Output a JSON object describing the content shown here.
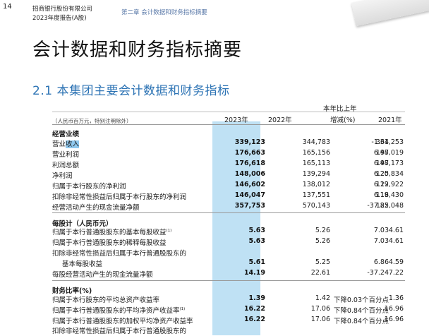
{
  "header": {
    "page_number": "14",
    "company": "招商银行股份有限公司",
    "report": "2023年度报告(A股)",
    "chapter": "第二章 会计数据和财务指标摘要"
  },
  "title": "会计数据和财务指标摘要",
  "section_title": "2.1 本集团主要会计数据和财务指标",
  "table": {
    "unit_note": "（人民币百万元，特别注明除外）",
    "col_headers": [
      "2023年",
      "2022年",
      "本年比上年",
      "增减(%)",
      "2021年"
    ],
    "rows": [
      {
        "label": "经营业绩",
        "group": true
      },
      {
        "label": "营业",
        "label_selected": "收入",
        "values": [
          "339,123",
          "344,783",
          "-1.64",
          "331,253"
        ]
      },
      {
        "label": "营业利润",
        "values": [
          "176,663",
          "165,156",
          "6.97",
          "148,019"
        ]
      },
      {
        "label": "利润总额",
        "values": [
          "176,618",
          "165,113",
          "6.97",
          "148,173"
        ]
      },
      {
        "label": "净利润",
        "values": [
          "148,006",
          "139,294",
          "6.25",
          "120,834"
        ]
      },
      {
        "label": "归属于本行股东的净利润",
        "values": [
          "146,602",
          "138,012",
          "6.22",
          "119,922"
        ]
      },
      {
        "label": "扣除非经常性损益后归属于本行股东的净利润",
        "values": [
          "146,047",
          "137,551",
          "6.18",
          "119,430"
        ]
      },
      {
        "label": "经营活动产生的现金流量净额",
        "values": [
          "357,753",
          "570,143",
          "-37.25",
          "182,048"
        ]
      },
      {
        "label": "每股计（人民币元）",
        "group": true
      },
      {
        "label": "归属于本行普通股股东的基本每股收益",
        "sup": "(1)",
        "values": [
          "5.63",
          "5.26",
          "7.03",
          "4.61"
        ]
      },
      {
        "label": "归属于本行普通股股东的稀释每股收益",
        "values": [
          "5.63",
          "5.26",
          "7.03",
          "4.61"
        ]
      },
      {
        "label": "扣除非经常性损益后归属于本行普通股股东的"
      },
      {
        "label": "基本每股收益",
        "indent": true,
        "values": [
          "5.61",
          "5.25",
          "6.86",
          "4.59"
        ]
      },
      {
        "label": "每股经营活动产生的现金流量净额",
        "values": [
          "14.19",
          "22.61",
          "-37.24",
          "7.22"
        ]
      },
      {
        "label": "财务比率(%)",
        "group": true
      },
      {
        "label": "归属于本行股东的平均总资产收益率",
        "values": [
          "1.39",
          "1.42",
          "下降0.03个百分点",
          "1.36"
        ]
      },
      {
        "label": "归属于本行普通股股东的平均净资产收益率",
        "sup": "(1)",
        "values": [
          "16.22",
          "17.06",
          "下降0.84个百分点",
          "16.96"
        ]
      },
      {
        "label": "归属于本行普通股股东的加权平均净资产收益率",
        "values": [
          "16.22",
          "17.06",
          "下降0.84个百分点",
          "16.96"
        ]
      },
      {
        "label": "扣除非经常性损益后归属于本行普通股股东的"
      }
    ]
  }
}
